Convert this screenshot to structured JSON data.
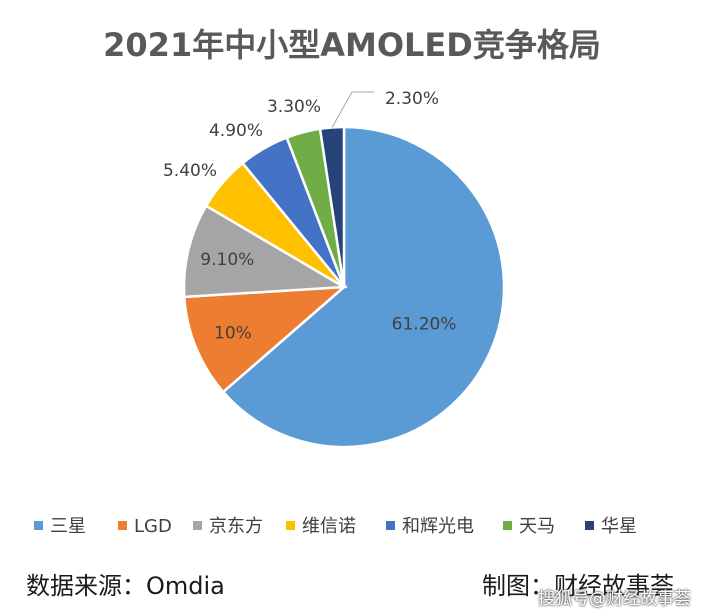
{
  "chart_data": {
    "type": "pie",
    "title": "2021年中小型AMOLED竞争格局",
    "categories": [
      "三星",
      "LGD",
      "京东方",
      "维信诺",
      "和辉光电",
      "天马",
      "华星"
    ],
    "values": [
      61.2,
      10,
      9.1,
      5.4,
      4.9,
      3.3,
      2.3
    ],
    "value_labels": [
      "61.20%",
      "10%",
      "9.10%",
      "5.40%",
      "4.90%",
      "3.30%",
      "2.30%"
    ],
    "colors": [
      "#5b9bd5",
      "#ed7d31",
      "#a5a5a5",
      "#ffc000",
      "#4472c4",
      "#70ad47",
      "#264478"
    ],
    "start": "12 o'clock, clockwise",
    "legend_position": "bottom"
  },
  "footer": {
    "source": "数据来源：Omdia",
    "credit": "制图：财经故事荟",
    "watermark": "搜狐号@财经故事荟"
  }
}
